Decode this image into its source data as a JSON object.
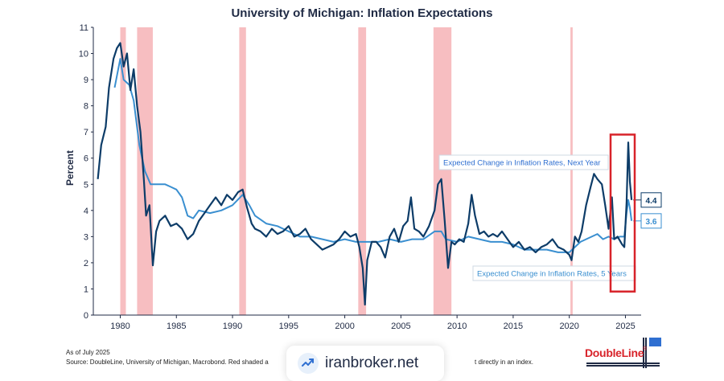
{
  "chart_data": {
    "type": "line",
    "title": "University of Michigan: Inflation Expectations",
    "ylabel": "Percent",
    "xlabel": "",
    "xlim": [
      1977.6,
      2026.4
    ],
    "ylim": [
      0,
      11
    ],
    "x_ticks": [
      1980,
      1985,
      1990,
      1995,
      2000,
      2005,
      2010,
      2015,
      2020,
      2025
    ],
    "y_ticks": [
      0,
      1,
      2,
      3,
      4,
      5,
      6,
      7,
      8,
      9,
      10,
      11
    ],
    "grid": false,
    "recessions": [
      [
        1980.0,
        1980.5
      ],
      [
        1981.5,
        1982.9
      ],
      [
        1990.6,
        1991.2
      ],
      [
        2001.2,
        2001.9
      ],
      [
        2007.9,
        2009.5
      ],
      [
        2020.1,
        2020.3
      ]
    ],
    "series": [
      {
        "name": "Expected Change in Inflation Rates, Next Year",
        "color": "#0d3c68",
        "annotation": "4.4",
        "points": [
          [
            1978.0,
            5.2
          ],
          [
            1978.3,
            6.5
          ],
          [
            1978.7,
            7.2
          ],
          [
            1979.0,
            8.7
          ],
          [
            1979.4,
            9.8
          ],
          [
            1979.7,
            10.2
          ],
          [
            1980.0,
            10.4
          ],
          [
            1980.3,
            9.5
          ],
          [
            1980.6,
            10.0
          ],
          [
            1980.9,
            8.6
          ],
          [
            1981.2,
            9.4
          ],
          [
            1981.5,
            8.0
          ],
          [
            1981.8,
            7.0
          ],
          [
            1982.1,
            5.2
          ],
          [
            1982.3,
            3.8
          ],
          [
            1982.6,
            4.2
          ],
          [
            1982.9,
            1.9
          ],
          [
            1983.2,
            3.2
          ],
          [
            1983.5,
            3.6
          ],
          [
            1984.0,
            3.8
          ],
          [
            1984.5,
            3.4
          ],
          [
            1985.0,
            3.5
          ],
          [
            1985.5,
            3.3
          ],
          [
            1986.0,
            2.9
          ],
          [
            1986.5,
            3.1
          ],
          [
            1987.0,
            3.6
          ],
          [
            1987.5,
            3.9
          ],
          [
            1988.0,
            4.2
          ],
          [
            1988.5,
            4.5
          ],
          [
            1989.0,
            4.2
          ],
          [
            1989.5,
            4.6
          ],
          [
            1990.0,
            4.4
          ],
          [
            1990.5,
            4.7
          ],
          [
            1990.9,
            4.8
          ],
          [
            1991.3,
            4.1
          ],
          [
            1991.7,
            3.5
          ],
          [
            1992.0,
            3.3
          ],
          [
            1992.5,
            3.2
          ],
          [
            1993.0,
            3.0
          ],
          [
            1993.5,
            3.3
          ],
          [
            1994.0,
            3.1
          ],
          [
            1994.5,
            3.2
          ],
          [
            1995.0,
            3.4
          ],
          [
            1995.5,
            3.0
          ],
          [
            1996.0,
            3.1
          ],
          [
            1996.5,
            3.3
          ],
          [
            1997.0,
            2.9
          ],
          [
            1997.5,
            2.7
          ],
          [
            1998.0,
            2.5
          ],
          [
            1998.5,
            2.6
          ],
          [
            1999.0,
            2.7
          ],
          [
            1999.5,
            2.9
          ],
          [
            2000.0,
            3.2
          ],
          [
            2000.5,
            3.0
          ],
          [
            2001.0,
            3.1
          ],
          [
            2001.3,
            2.6
          ],
          [
            2001.6,
            1.8
          ],
          [
            2001.8,
            0.4
          ],
          [
            2002.0,
            2.1
          ],
          [
            2002.4,
            2.8
          ],
          [
            2002.8,
            2.8
          ],
          [
            2003.2,
            2.6
          ],
          [
            2003.6,
            2.2
          ],
          [
            2004.0,
            3.0
          ],
          [
            2004.4,
            3.3
          ],
          [
            2004.8,
            2.8
          ],
          [
            2005.2,
            3.4
          ],
          [
            2005.6,
            3.6
          ],
          [
            2005.9,
            4.5
          ],
          [
            2006.2,
            3.3
          ],
          [
            2006.6,
            3.2
          ],
          [
            2007.0,
            3.0
          ],
          [
            2007.5,
            3.4
          ],
          [
            2008.0,
            4.0
          ],
          [
            2008.3,
            5.0
          ],
          [
            2008.6,
            5.2
          ],
          [
            2008.9,
            3.6
          ],
          [
            2009.2,
            1.8
          ],
          [
            2009.5,
            2.8
          ],
          [
            2009.8,
            2.7
          ],
          [
            2010.2,
            2.9
          ],
          [
            2010.6,
            2.8
          ],
          [
            2011.0,
            3.5
          ],
          [
            2011.3,
            4.6
          ],
          [
            2011.6,
            3.8
          ],
          [
            2012.0,
            3.1
          ],
          [
            2012.4,
            3.2
          ],
          [
            2012.8,
            3.0
          ],
          [
            2013.2,
            3.1
          ],
          [
            2013.6,
            3.0
          ],
          [
            2014.0,
            3.2
          ],
          [
            2014.5,
            2.9
          ],
          [
            2015.0,
            2.6
          ],
          [
            2015.5,
            2.8
          ],
          [
            2016.0,
            2.5
          ],
          [
            2016.5,
            2.6
          ],
          [
            2017.0,
            2.4
          ],
          [
            2017.5,
            2.6
          ],
          [
            2018.0,
            2.7
          ],
          [
            2018.5,
            2.9
          ],
          [
            2019.0,
            2.6
          ],
          [
            2019.5,
            2.5
          ],
          [
            2020.0,
            2.3
          ],
          [
            2020.2,
            2.1
          ],
          [
            2020.5,
            3.0
          ],
          [
            2020.8,
            2.8
          ],
          [
            2021.1,
            3.2
          ],
          [
            2021.5,
            4.2
          ],
          [
            2021.9,
            4.9
          ],
          [
            2022.2,
            5.4
          ],
          [
            2022.5,
            5.2
          ],
          [
            2022.9,
            5.0
          ],
          [
            2023.2,
            4.2
          ],
          [
            2023.5,
            3.3
          ],
          [
            2023.8,
            4.5
          ],
          [
            2024.0,
            2.9
          ],
          [
            2024.3,
            3.0
          ],
          [
            2024.7,
            2.7
          ],
          [
            2024.9,
            2.6
          ],
          [
            2025.1,
            4.3
          ],
          [
            2025.25,
            6.6
          ],
          [
            2025.4,
            5.1
          ],
          [
            2025.55,
            4.4
          ]
        ]
      },
      {
        "name": "Expected Change in Inflation Rates, 5 Years",
        "color": "#3a8fd0",
        "annotation": "3.6",
        "points": [
          [
            1979.5,
            8.7
          ],
          [
            1980.0,
            9.8
          ],
          [
            1980.3,
            9.0
          ],
          [
            1980.8,
            8.8
          ],
          [
            1981.2,
            8.2
          ],
          [
            1981.7,
            6.5
          ],
          [
            1982.2,
            5.5
          ],
          [
            1982.7,
            5.0
          ],
          [
            1983.2,
            5.0
          ],
          [
            1984.0,
            5.0
          ],
          [
            1984.5,
            4.9
          ],
          [
            1985.0,
            4.8
          ],
          [
            1985.5,
            4.5
          ],
          [
            1986.0,
            3.8
          ],
          [
            1986.5,
            3.7
          ],
          [
            1987.0,
            4.0
          ],
          [
            1988.0,
            3.9
          ],
          [
            1989.0,
            4.0
          ],
          [
            1990.0,
            4.2
          ],
          [
            1990.9,
            4.6
          ],
          [
            1991.5,
            4.2
          ],
          [
            1992.0,
            3.8
          ],
          [
            1993.0,
            3.5
          ],
          [
            1994.0,
            3.4
          ],
          [
            1995.0,
            3.2
          ],
          [
            1996.0,
            3.0
          ],
          [
            1997.0,
            3.0
          ],
          [
            1998.0,
            2.9
          ],
          [
            1999.0,
            2.8
          ],
          [
            2000.0,
            2.9
          ],
          [
            2001.0,
            2.8
          ],
          [
            2002.0,
            2.8
          ],
          [
            2003.0,
            2.8
          ],
          [
            2004.0,
            2.9
          ],
          [
            2005.0,
            2.8
          ],
          [
            2006.0,
            2.9
          ],
          [
            2007.0,
            2.9
          ],
          [
            2008.0,
            3.2
          ],
          [
            2008.6,
            3.2
          ],
          [
            2009.0,
            2.9
          ],
          [
            2010.0,
            2.8
          ],
          [
            2011.0,
            3.0
          ],
          [
            2012.0,
            2.9
          ],
          [
            2013.0,
            2.8
          ],
          [
            2014.0,
            2.8
          ],
          [
            2015.0,
            2.7
          ],
          [
            2016.0,
            2.5
          ],
          [
            2017.0,
            2.5
          ],
          [
            2018.0,
            2.5
          ],
          [
            2019.0,
            2.4
          ],
          [
            2020.0,
            2.4
          ],
          [
            2020.5,
            2.6
          ],
          [
            2021.0,
            2.8
          ],
          [
            2021.5,
            2.9
          ],
          [
            2022.0,
            3.0
          ],
          [
            2022.5,
            3.1
          ],
          [
            2023.0,
            2.9
          ],
          [
            2023.5,
            3.0
          ],
          [
            2024.0,
            2.9
          ],
          [
            2024.5,
            3.0
          ],
          [
            2024.9,
            3.0
          ],
          [
            2025.1,
            3.9
          ],
          [
            2025.25,
            4.4
          ],
          [
            2025.4,
            4.1
          ],
          [
            2025.55,
            3.6
          ]
        ]
      }
    ]
  },
  "footer": {
    "as_of": "As of July 2025",
    "source": "Source: DoubleLine, University of Michigan, Macrobond. Red shaded a",
    "source_tail": "t directly in an index."
  },
  "watermark": {
    "text": "iranbroker.net"
  },
  "brand": {
    "logo_text": "DoubleLine",
    "logo_reg": "®",
    "color": "#d8232a"
  }
}
